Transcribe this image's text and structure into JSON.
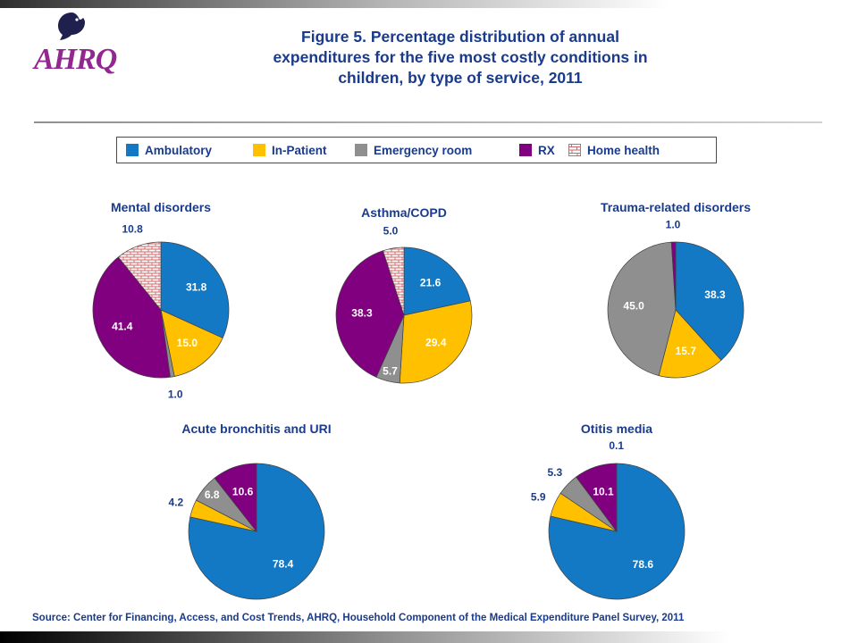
{
  "slide": {
    "title": "Figure 5. Percentage distribution of annual expenditures for the five most costly conditions in children, by type of service, 2011",
    "source": "Source: Center for Financing, Access, and Cost Trends, AHRQ, Household Component of the Medical Expenditure Panel Survey, 2011",
    "logo": {
      "org": "AHRQ"
    }
  },
  "colors": {
    "ambulatory": "#1479C4",
    "inpatient": "#FFC000",
    "emergency": "#8F8F8F",
    "rx": "#800080",
    "home_health_bg": "#FFFFFF",
    "home_health_line": "#CC6666",
    "navy_text": "#1A3B8B"
  },
  "legend": {
    "items": [
      {
        "label": "Ambulatory",
        "key": "ambulatory"
      },
      {
        "label": "In-Patient",
        "key": "inpatient"
      },
      {
        "label": "Emergency room",
        "key": "emergency"
      },
      {
        "label": "RX",
        "key": "rx"
      },
      {
        "label": "Home health",
        "key": "home_health"
      }
    ]
  },
  "chart_data": {
    "type": "pie",
    "direction": "clockwise",
    "start_angle_deg": 0,
    "legend_position": "top",
    "categories": [
      "Ambulatory",
      "In-Patient",
      "Emergency room",
      "RX",
      "Home health"
    ],
    "charts": [
      {
        "title": "Mental disorders",
        "slices": [
          {
            "category": "Ambulatory",
            "key": "ambulatory",
            "value": 31.8,
            "label_pos": "in"
          },
          {
            "category": "In-Patient",
            "key": "inpatient",
            "value": 15.0,
            "label_pos": "in"
          },
          {
            "category": "Emergency room",
            "key": "emergency",
            "value": 1.0,
            "label_pos": "out"
          },
          {
            "category": "RX",
            "key": "rx",
            "value": 41.4,
            "label_pos": "in"
          },
          {
            "category": "Home health",
            "key": "home_health",
            "value": 10.8,
            "label_pos": "out"
          }
        ]
      },
      {
        "title": "Asthma/COPD",
        "slices": [
          {
            "category": "Ambulatory",
            "key": "ambulatory",
            "value": 21.6,
            "label_pos": "in"
          },
          {
            "category": "In-Patient",
            "key": "inpatient",
            "value": 29.4,
            "label_pos": "in"
          },
          {
            "category": "Emergency room",
            "key": "emergency",
            "value": 5.7,
            "label_pos": "in"
          },
          {
            "category": "RX",
            "key": "rx",
            "value": 38.3,
            "label_pos": "in"
          },
          {
            "category": "Home health",
            "key": "home_health",
            "value": 5.0,
            "label_pos": "out"
          }
        ]
      },
      {
        "title": "Trauma-related disorders",
        "slices": [
          {
            "category": "Ambulatory",
            "key": "ambulatory",
            "value": 38.3,
            "label_pos": "in"
          },
          {
            "category": "In-Patient",
            "key": "inpatient",
            "value": 15.7,
            "label_pos": "in"
          },
          {
            "category": "Emergency room",
            "key": "emergency",
            "value": 45.0,
            "label_pos": "in"
          },
          {
            "category": "RX",
            "key": "rx",
            "value": 1.0,
            "label_pos": "out"
          }
        ]
      },
      {
        "title": "Acute bronchitis and URI",
        "slices": [
          {
            "category": "Ambulatory",
            "key": "ambulatory",
            "value": 78.4,
            "label_pos": "in"
          },
          {
            "category": "In-Patient",
            "key": "inpatient",
            "value": 4.2,
            "label_pos": "out"
          },
          {
            "category": "Emergency room",
            "key": "emergency",
            "value": 6.8,
            "label_pos": "in"
          },
          {
            "category": "RX",
            "key": "rx",
            "value": 10.6,
            "label_pos": "in"
          }
        ]
      },
      {
        "title": "Otitis media",
        "slices": [
          {
            "category": "Ambulatory",
            "key": "ambulatory",
            "value": 78.6,
            "label_pos": "in"
          },
          {
            "category": "In-Patient",
            "key": "inpatient",
            "value": 5.9,
            "label_pos": "out"
          },
          {
            "category": "Emergency room",
            "key": "emergency",
            "value": 5.3,
            "label_pos": "out"
          },
          {
            "category": "RX",
            "key": "rx",
            "value": 10.1,
            "label_pos": "in"
          },
          {
            "category": "Home health",
            "key": "home_health",
            "value": 0.1,
            "label_pos": "out"
          }
        ]
      }
    ]
  }
}
